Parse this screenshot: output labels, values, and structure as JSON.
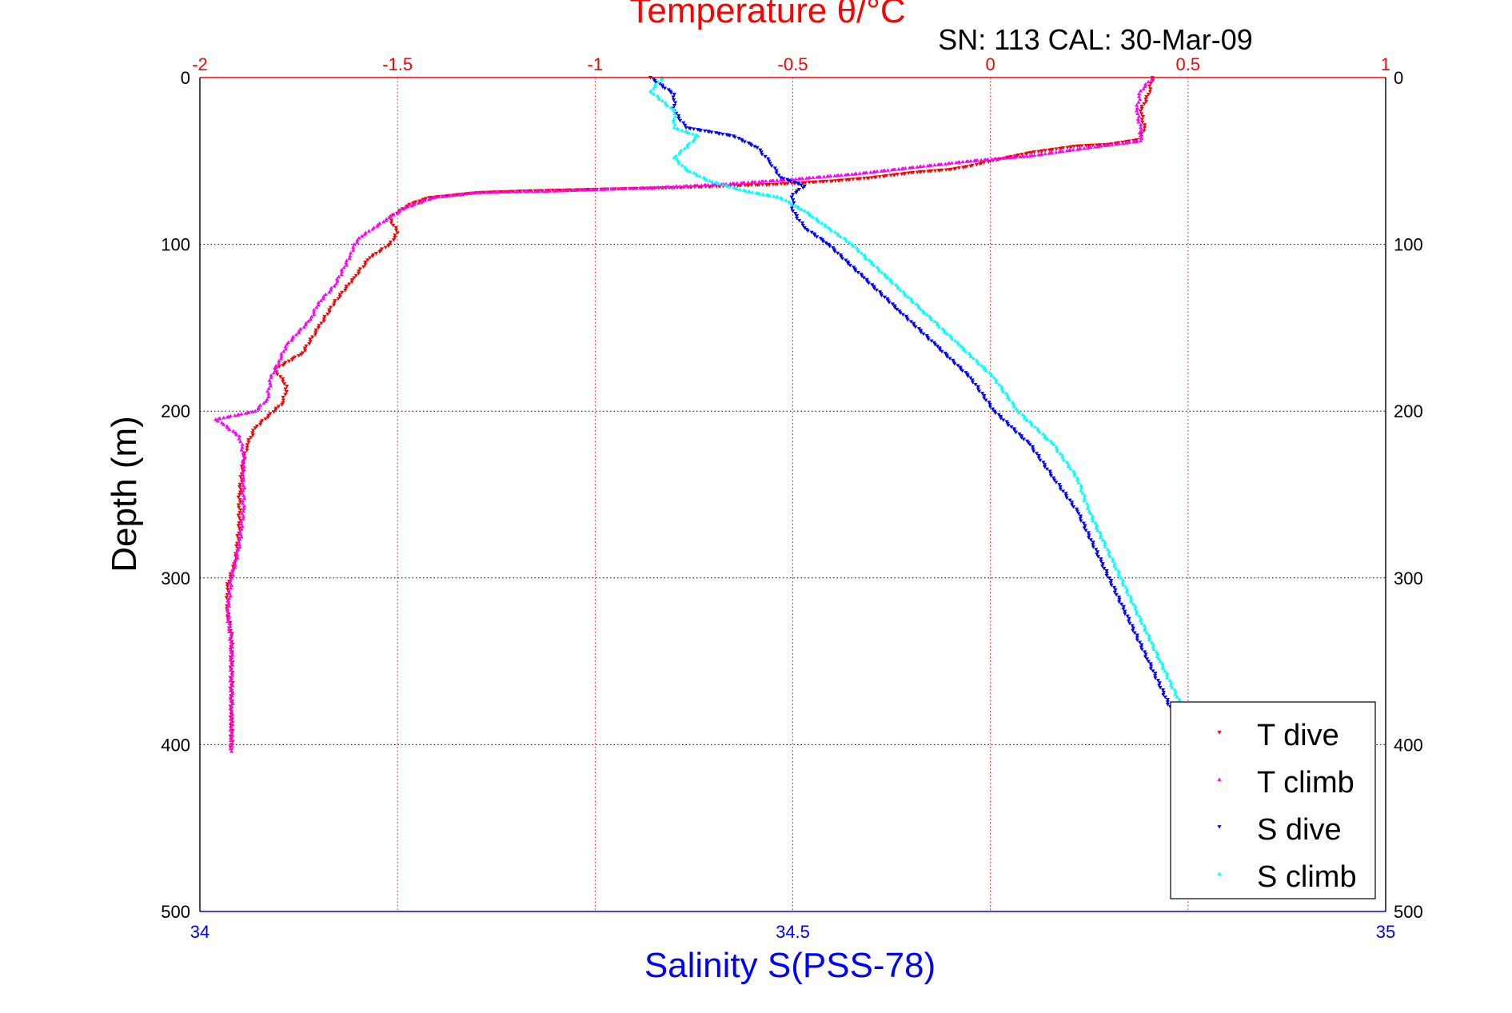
{
  "chart_data": {
    "type": "scatter",
    "title": "Temperature θ/°C",
    "subtitle": "SN: 113  CAL: 30-Mar-09",
    "top_axis": {
      "label": "Temperature θ/°C",
      "range": [
        -2,
        1
      ],
      "ticks": [
        -2,
        -1.5,
        -1,
        -0.5,
        0,
        0.5,
        1
      ],
      "tick_labels": [
        "-2",
        "-1.5",
        "-1",
        "-0.5",
        "0",
        "0.5",
        "1"
      ],
      "color": "#ff0000"
    },
    "bottom_axis": {
      "label": "Salinity S(PSS-78)",
      "range": [
        34,
        35
      ],
      "ticks": [
        34,
        34.5,
        35
      ],
      "tick_labels": [
        "34",
        "34.5",
        "35"
      ],
      "color": "#0000ff"
    },
    "y_axis": {
      "label": "Depth (m)",
      "range": [
        0,
        500
      ],
      "reversed": true,
      "ticks": [
        0,
        100,
        200,
        300,
        400,
        500
      ],
      "tick_labels": [
        "0",
        "100",
        "200",
        "300",
        "400",
        "500"
      ]
    },
    "grid": {
      "vertical": "red-dotted",
      "horizontal": "black-dotted"
    },
    "legend": {
      "placement": "bottom-right",
      "entries": [
        "T dive",
        "T climb",
        "S dive",
        "S climb"
      ]
    },
    "series": [
      {
        "name": "T dive",
        "axis": "temperature",
        "color": "#ff0000",
        "marker": "triangle-down",
        "points": [
          [
            0.41,
            0
          ],
          [
            0.4,
            10
          ],
          [
            0.38,
            20
          ],
          [
            0.39,
            30
          ],
          [
            0.38,
            37
          ],
          [
            0.3,
            40
          ],
          [
            0.22,
            41
          ],
          [
            0.1,
            45
          ],
          [
            0.0,
            50
          ],
          [
            -0.05,
            53
          ],
          [
            -0.1,
            55
          ],
          [
            -0.2,
            57
          ],
          [
            -0.3,
            60
          ],
          [
            -0.4,
            62
          ],
          [
            -0.55,
            64
          ],
          [
            -0.8,
            66
          ],
          [
            -1.0,
            67
          ],
          [
            -1.18,
            68
          ],
          [
            -1.3,
            69
          ],
          [
            -1.42,
            72
          ],
          [
            -1.47,
            76
          ],
          [
            -1.52,
            84
          ],
          [
            -1.5,
            93
          ],
          [
            -1.52,
            100
          ],
          [
            -1.57,
            108
          ],
          [
            -1.61,
            120
          ],
          [
            -1.66,
            135
          ],
          [
            -1.7,
            150
          ],
          [
            -1.74,
            165
          ],
          [
            -1.81,
            175
          ],
          [
            -1.78,
            185
          ],
          [
            -1.79,
            195
          ],
          [
            -1.86,
            210
          ],
          [
            -1.88,
            220
          ],
          [
            -1.89,
            230
          ],
          [
            -1.9,
            250
          ],
          [
            -1.9,
            270
          ],
          [
            -1.91,
            290
          ],
          [
            -1.93,
            305
          ],
          [
            -1.93,
            320
          ],
          [
            -1.92,
            335
          ],
          [
            -1.92,
            355
          ],
          [
            -1.92,
            380
          ],
          [
            -1.92,
            403
          ]
        ]
      },
      {
        "name": "T climb",
        "axis": "temperature",
        "color": "#ff00ff",
        "marker": "triangle-up",
        "points": [
          [
            0.41,
            0
          ],
          [
            0.38,
            8
          ],
          [
            0.37,
            20
          ],
          [
            0.38,
            30
          ],
          [
            0.38,
            38
          ],
          [
            0.25,
            42
          ],
          [
            0.1,
            47
          ],
          [
            -0.05,
            50
          ],
          [
            -0.2,
            54
          ],
          [
            -0.35,
            58
          ],
          [
            -0.5,
            61
          ],
          [
            -0.68,
            64
          ],
          [
            -0.85,
            66
          ],
          [
            -1.1,
            68
          ],
          [
            -1.3,
            69
          ],
          [
            -1.41,
            72
          ],
          [
            -1.48,
            78
          ],
          [
            -1.52,
            84
          ],
          [
            -1.56,
            90
          ],
          [
            -1.59,
            95
          ],
          [
            -1.61,
            100
          ],
          [
            -1.62,
            107
          ],
          [
            -1.66,
            125
          ],
          [
            -1.7,
            135
          ],
          [
            -1.72,
            145
          ],
          [
            -1.78,
            160
          ],
          [
            -1.8,
            170
          ],
          [
            -1.82,
            180
          ],
          [
            -1.83,
            193
          ],
          [
            -1.86,
            200
          ],
          [
            -1.96,
            205
          ],
          [
            -1.94,
            208
          ],
          [
            -1.9,
            215
          ],
          [
            -1.89,
            225
          ],
          [
            -1.89,
            240
          ],
          [
            -1.89,
            260
          ],
          [
            -1.9,
            280
          ],
          [
            -1.92,
            300
          ],
          [
            -1.93,
            320
          ],
          [
            -1.92,
            340
          ],
          [
            -1.92,
            360
          ],
          [
            -1.92,
            380
          ],
          [
            -1.92,
            404
          ]
        ]
      },
      {
        "name": "S dive",
        "axis": "salinity",
        "color": "#0000ff",
        "marker": "triangle-down",
        "points": [
          [
            34.38,
            0
          ],
          [
            34.4,
            10
          ],
          [
            34.4,
            20
          ],
          [
            34.41,
            30
          ],
          [
            34.45,
            35
          ],
          [
            34.47,
            42
          ],
          [
            34.48,
            50
          ],
          [
            34.49,
            60
          ],
          [
            34.51,
            65
          ],
          [
            34.5,
            70
          ],
          [
            34.5,
            80
          ],
          [
            34.51,
            90
          ],
          [
            34.53,
            100
          ],
          [
            34.56,
            120
          ],
          [
            34.59,
            140
          ],
          [
            34.62,
            160
          ],
          [
            34.65,
            180
          ],
          [
            34.67,
            200
          ],
          [
            34.7,
            220
          ],
          [
            34.72,
            240
          ],
          [
            34.74,
            260
          ],
          [
            34.76,
            290
          ],
          [
            34.78,
            320
          ],
          [
            34.8,
            350
          ],
          [
            34.82,
            380
          ],
          [
            34.84,
            400
          ],
          [
            34.85,
            403
          ]
        ]
      },
      {
        "name": "S climb",
        "axis": "salinity",
        "color": "#00ffff",
        "marker": "triangle-up",
        "points": [
          [
            34.39,
            0
          ],
          [
            34.38,
            8
          ],
          [
            34.4,
            20
          ],
          [
            34.4,
            30
          ],
          [
            34.42,
            35
          ],
          [
            34.4,
            48
          ],
          [
            34.41,
            55
          ],
          [
            34.43,
            62
          ],
          [
            34.46,
            68
          ],
          [
            34.49,
            72
          ],
          [
            34.51,
            80
          ],
          [
            34.53,
            90
          ],
          [
            34.55,
            100
          ],
          [
            34.58,
            120
          ],
          [
            34.61,
            140
          ],
          [
            34.64,
            160
          ],
          [
            34.67,
            180
          ],
          [
            34.69,
            200
          ],
          [
            34.72,
            220
          ],
          [
            34.74,
            240
          ],
          [
            34.75,
            260
          ],
          [
            34.77,
            290
          ],
          [
            34.79,
            320
          ],
          [
            34.81,
            350
          ],
          [
            34.83,
            380
          ],
          [
            34.85,
            400
          ],
          [
            34.86,
            404
          ]
        ]
      }
    ]
  }
}
